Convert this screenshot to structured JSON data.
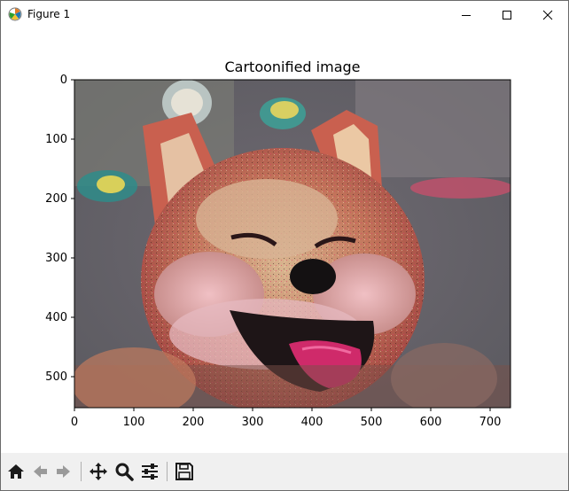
{
  "window": {
    "title": "Figure 1",
    "controls": [
      "minimize-icon",
      "maximize-icon",
      "close-icon"
    ]
  },
  "plot": {
    "title": "Cartoonified image",
    "x_ticks": [
      "0",
      "100",
      "200",
      "300",
      "400",
      "500",
      "600",
      "700"
    ],
    "y_ticks": [
      "0",
      "100",
      "200",
      "300",
      "400",
      "500"
    ],
    "image_content": "cartoonified photo of a smiling shiba inu dog"
  },
  "toolbar": {
    "tools": [
      "home-icon",
      "back-arrow-icon",
      "forward-arrow-icon",
      "pan-icon",
      "zoom-icon",
      "configure-subplots-icon",
      "save-icon"
    ]
  }
}
